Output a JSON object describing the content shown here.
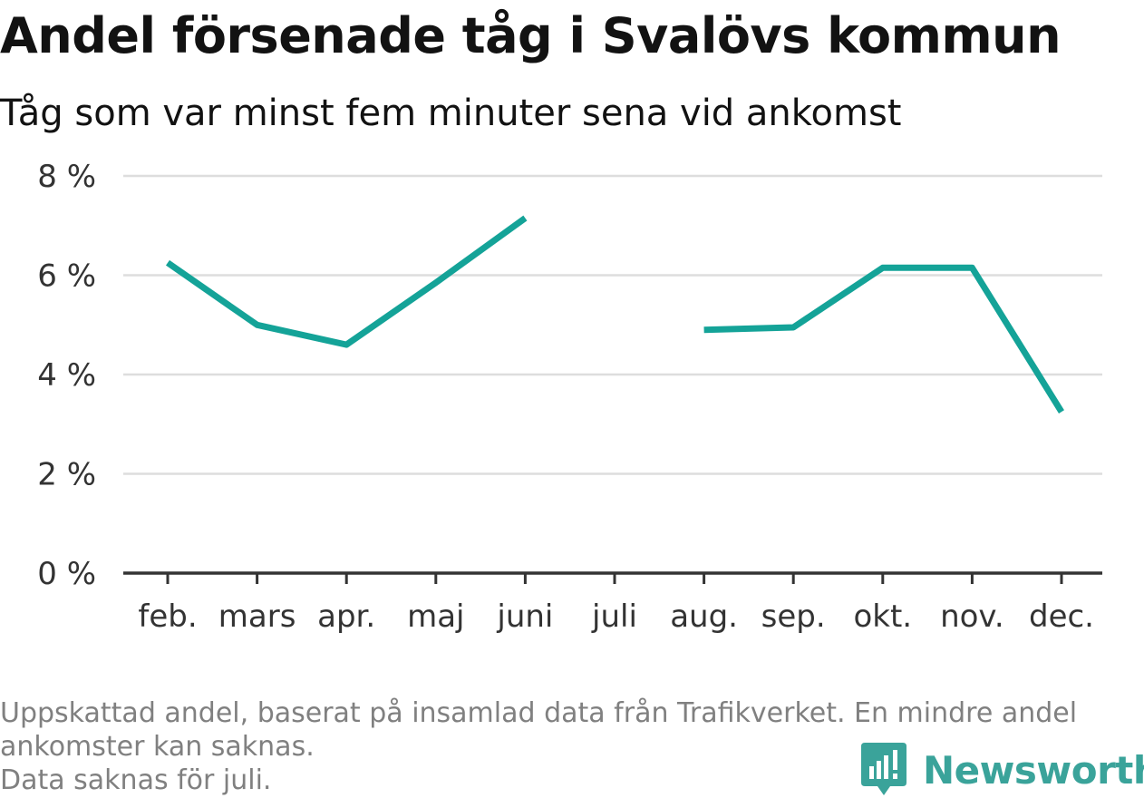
{
  "title": "Andel försenade tåg i Svalövs kommun",
  "subtitle": "Tåg som var minst fem minuter sena vid ankomst",
  "footnote": {
    "line1": "Uppskattad andel, baserat på insamlad data från Trafikverket. En mindre andel",
    "line2": "ankomster kan saknas.",
    "line3": "Data saknas för juli."
  },
  "brand": {
    "name": "Newsworthy",
    "icon": "newsworthy-logo-icon",
    "color": "#3aa39a"
  },
  "colors": {
    "line": "#14a398",
    "grid": "#dddddd",
    "axis": "#333333",
    "text": "#333333"
  },
  "chart_data": {
    "type": "line",
    "categories": [
      "feb.",
      "mars",
      "apr.",
      "maj",
      "juni",
      "juli",
      "aug.",
      "sep.",
      "okt.",
      "nov.",
      "dec."
    ],
    "series": [
      {
        "values": [
          6.25,
          5.0,
          4.6,
          5.85,
          7.15,
          null,
          4.9,
          4.95,
          6.15,
          6.15,
          3.25
        ]
      }
    ],
    "y_ticks": [
      "0 %",
      "2 %",
      "4 %",
      "6 %",
      "8 %"
    ],
    "ylim": [
      0,
      8
    ],
    "grid": true,
    "xlabel": "",
    "ylabel": ""
  }
}
